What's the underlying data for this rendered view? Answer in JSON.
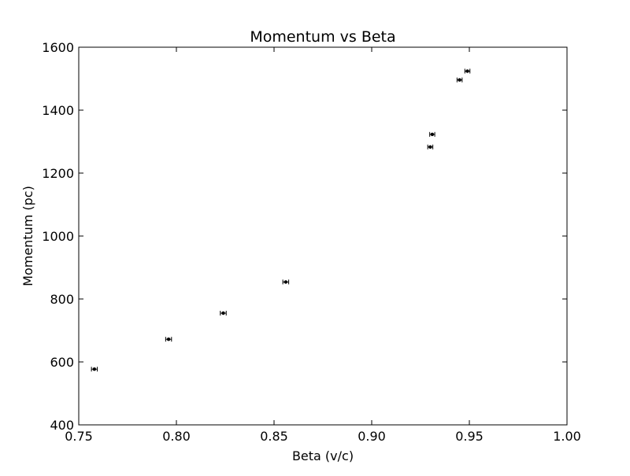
{
  "chart_data": {
    "type": "scatter",
    "title": "Momentum vs Beta",
    "xlabel": "Beta (v/c)",
    "ylabel": "Momentum (pc)",
    "xlim": [
      0.75,
      1.0
    ],
    "ylim": [
      400,
      1600
    ],
    "xticks": [
      0.75,
      0.8,
      0.85,
      0.9,
      0.95,
      1.0
    ],
    "xtick_labels": [
      "0.75",
      "0.80",
      "0.85",
      "0.90",
      "0.95",
      "1.00"
    ],
    "yticks": [
      400,
      600,
      800,
      1000,
      1200,
      1400,
      1600
    ],
    "ytick_labels": [
      "400",
      "600",
      "800",
      "1000",
      "1200",
      "1400",
      "1600"
    ],
    "grid": false,
    "error_bars": "horizontal",
    "series": [
      {
        "marker_color": "#000000",
        "points": [
          {
            "x": 0.758,
            "y": 577,
            "xerr": 0.0015
          },
          {
            "x": 0.796,
            "y": 672,
            "xerr": 0.0015
          },
          {
            "x": 0.824,
            "y": 755,
            "xerr": 0.0015
          },
          {
            "x": 0.856,
            "y": 854,
            "xerr": 0.0015
          },
          {
            "x": 0.93,
            "y": 1283,
            "xerr": 0.0013
          },
          {
            "x": 0.931,
            "y": 1323,
            "xerr": 0.0013
          },
          {
            "x": 0.945,
            "y": 1496,
            "xerr": 0.0013
          },
          {
            "x": 0.949,
            "y": 1524,
            "xerr": 0.0013
          }
        ]
      }
    ]
  }
}
